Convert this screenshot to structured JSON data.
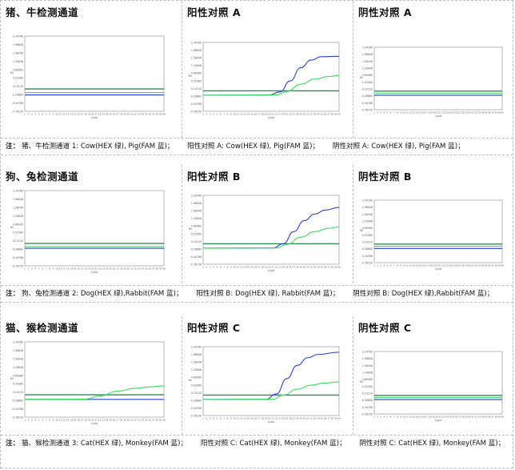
{
  "rows": [
    {
      "titles": [
        "猪、牛检测通道",
        "阳性对照 A",
        "阴性对照 A"
      ],
      "note": {
        "lead": "注：",
        "parts": [
          "猪、牛检测通道 1: Cow(HEX  绿), Pig(FAM  蓝)；",
          "阳性对照 A:   Cow(HEX  绿), Pig(FAM  蓝)；",
          "阴性对照 A:   Cow(HEX  绿), Pig(FAM  蓝)；"
        ]
      }
    },
    {
      "titles": [
        "狗、兔检测通道",
        "阳性对照 B",
        "阴性对照 B"
      ],
      "note": {
        "lead": "注：",
        "parts": [
          "狗、兔检测通道 2: Dog(HEX  绿),Rabbit(FAM  蓝)；",
          "阳性对照 B: Dog(HEX  绿), Rabbit(FAM  蓝)；",
          "阴性对照 B: Dog(HEX  绿),Rabbit(FAM  蓝)；"
        ]
      }
    },
    {
      "titles": [
        "猫、猴检测通道",
        "阳性对照 C",
        "阴性对照 C"
      ],
      "note": {
        "lead": "注：",
        "parts": [
          "猫、猴检测通道 3:   Cat(HEX  绿), Monkey(FAM  蓝)；",
          "阳性对照 C:   Cat(HEX  绿), Monkey(FAM  蓝)；",
          "阴性对照 C:   Cat(HEX  绿), Monkey(FAM  蓝)；"
        ]
      }
    }
  ],
  "colors": {
    "fam": "#2a3fd6",
    "hex": "#33e05a",
    "threshold": "#2f8a55",
    "axis": "#888888"
  },
  "chart_data": [
    {
      "type": "line",
      "title": "猪、牛检测通道",
      "ylim": [
        -0.78,
        2.35
      ],
      "x": [
        1,
        40
      ],
      "threshold": 0.15,
      "yticks": [
        "2.34780",
        "1.96848",
        "1.58046",
        "1.20848",
        "0.80960",
        "0.52080",
        "0.13120",
        "-0.26880",
        "-0.44768",
        "-0.78150"
      ],
      "series": [
        {
          "name": "Pig(FAM 蓝)",
          "values": [
            [
              1,
              -0.1
            ],
            [
              40,
              -0.1
            ]
          ]
        },
        {
          "name": "Cow(HEX 绿)",
          "values": [
            [
              1,
              0.0
            ],
            [
              40,
              0.0
            ]
          ]
        }
      ]
    },
    {
      "type": "line",
      "title": "阳性对照 A",
      "ylim": [
        -0.78,
        2.35
      ],
      "x": [
        1,
        40
      ],
      "threshold": 0.15,
      "yticks": [
        "2.34780",
        "1.96848",
        "1.58046",
        "1.20848",
        "0.80960",
        "0.52080",
        "0.13120",
        "-0.26880",
        "-0.44768",
        "-0.78150"
      ],
      "series": [
        {
          "name": "Pig(FAM 蓝)",
          "values": [
            [
              1,
              -0.05
            ],
            [
              20,
              -0.04
            ],
            [
              23,
              0.1
            ],
            [
              26,
              0.6
            ],
            [
              29,
              1.2
            ],
            [
              32,
              1.55
            ],
            [
              35,
              1.7
            ],
            [
              40,
              1.72
            ]
          ]
        },
        {
          "name": "Cow(HEX 绿)",
          "values": [
            [
              1,
              -0.05
            ],
            [
              22,
              -0.04
            ],
            [
              25,
              0.12
            ],
            [
              29,
              0.45
            ],
            [
              33,
              0.68
            ],
            [
              37,
              0.8
            ],
            [
              40,
              0.85
            ]
          ]
        }
      ]
    },
    {
      "type": "line",
      "title": "阴性对照 A",
      "ylim": [
        -0.78,
        2.35
      ],
      "x": [
        1,
        40
      ],
      "threshold": 0.15,
      "yticks": [
        "2.34780",
        "1.96848",
        "1.58046",
        "1.20848",
        "0.80960",
        "0.52080",
        "0.13120",
        "-0.26880",
        "-0.44768",
        "-0.78150"
      ],
      "series": [
        {
          "name": "Pig(FAM 蓝)",
          "values": [
            [
              1,
              -0.06
            ],
            [
              40,
              -0.06
            ]
          ]
        },
        {
          "name": "Cow(HEX 绿)",
          "values": [
            [
              1,
              0.03
            ],
            [
              40,
              0.03
            ]
          ]
        }
      ]
    },
    {
      "type": "line",
      "title": "狗、兔检测通道",
      "ylim": [
        -0.78,
        2.35
      ],
      "x": [
        1,
        40
      ],
      "threshold": 0.15,
      "yticks": [
        "2.34780",
        "1.96848",
        "1.58046",
        "1.20848",
        "0.80960",
        "0.52080",
        "0.13120",
        "-0.26880",
        "-0.44768",
        "-0.78150"
      ],
      "series": [
        {
          "name": "Rabbit(FAM 蓝)",
          "values": [
            [
              1,
              -0.05
            ],
            [
              40,
              -0.05
            ]
          ]
        },
        {
          "name": "Dog(HEX 绿)",
          "values": [
            [
              1,
              0.02
            ],
            [
              40,
              0.02
            ]
          ]
        }
      ]
    },
    {
      "type": "line",
      "title": "阳性对照 B",
      "ylim": [
        -0.78,
        2.35
      ],
      "x": [
        1,
        40
      ],
      "threshold": 0.15,
      "yticks": [
        "2.34780",
        "1.96848",
        "1.58046",
        "1.20848",
        "0.80960",
        "0.52080",
        "0.13120",
        "-0.26880",
        "-0.44768",
        "-0.78150"
      ],
      "series": [
        {
          "name": "Rabbit(FAM 蓝)",
          "values": [
            [
              1,
              -0.05
            ],
            [
              21,
              -0.04
            ],
            [
              24,
              0.15
            ],
            [
              27,
              0.7
            ],
            [
              30,
              1.2
            ],
            [
              33,
              1.5
            ],
            [
              36,
              1.68
            ],
            [
              40,
              1.8
            ]
          ]
        },
        {
          "name": "Dog(HEX 绿)",
          "values": [
            [
              1,
              -0.05
            ],
            [
              22,
              -0.04
            ],
            [
              25,
              0.12
            ],
            [
              29,
              0.45
            ],
            [
              33,
              0.7
            ],
            [
              37,
              0.85
            ],
            [
              40,
              0.92
            ]
          ]
        }
      ]
    },
    {
      "type": "line",
      "title": "阴性对照 B",
      "ylim": [
        -0.78,
        2.35
      ],
      "x": [
        1,
        40
      ],
      "threshold": 0.15,
      "yticks": [
        "2.34780",
        "1.96848",
        "1.58046",
        "1.20848",
        "0.80960",
        "0.52080",
        "0.13120",
        "-0.26880",
        "-0.44768",
        "-0.78150"
      ],
      "series": [
        {
          "name": "Rabbit(FAM 蓝)",
          "values": [
            [
              1,
              -0.07
            ],
            [
              40,
              -0.07
            ]
          ]
        },
        {
          "name": "Dog(HEX 绿)",
          "values": [
            [
              1,
              0.04
            ],
            [
              40,
              0.04
            ]
          ]
        }
      ]
    },
    {
      "type": "line",
      "title": "猫、猴检测通道",
      "ylim": [
        -0.78,
        2.35
      ],
      "x": [
        1,
        40
      ],
      "threshold": 0.15,
      "yticks": [
        "2.34780",
        "1.96848",
        "1.58046",
        "1.20848",
        "0.80960",
        "0.52080",
        "0.13120",
        "-0.26880",
        "-0.44768",
        "-0.78150"
      ],
      "series": [
        {
          "name": "Monkey(FAM 蓝)",
          "values": [
            [
              1,
              -0.04
            ],
            [
              40,
              -0.04
            ]
          ]
        },
        {
          "name": "Cat(HEX 绿)",
          "values": [
            [
              1,
              -0.04
            ],
            [
              18,
              -0.03
            ],
            [
              22,
              0.1
            ],
            [
              27,
              0.3
            ],
            [
              32,
              0.42
            ],
            [
              36,
              0.48
            ],
            [
              40,
              0.52
            ]
          ]
        }
      ]
    },
    {
      "type": "line",
      "title": "阳性对照 C",
      "ylim": [
        -0.78,
        2.35
      ],
      "x": [
        1,
        40
      ],
      "threshold": 0.15,
      "yticks": [
        "2.34780",
        "1.96848",
        "1.58046",
        "1.20848",
        "0.80960",
        "0.52080",
        "0.13120",
        "-0.26880",
        "-0.44768",
        "-0.78150"
      ],
      "series": [
        {
          "name": "Monkey(FAM 蓝)",
          "values": [
            [
              1,
              -0.05
            ],
            [
              19,
              -0.04
            ],
            [
              22,
              0.2
            ],
            [
              25,
              0.9
            ],
            [
              28,
              1.5
            ],
            [
              31,
              1.85
            ],
            [
              34,
              2.0
            ],
            [
              40,
              2.1
            ]
          ]
        },
        {
          "name": "Cat(HEX 绿)",
          "values": [
            [
              1,
              -0.05
            ],
            [
              21,
              -0.04
            ],
            [
              24,
              0.15
            ],
            [
              28,
              0.42
            ],
            [
              32,
              0.6
            ],
            [
              36,
              0.7
            ],
            [
              40,
              0.75
            ]
          ]
        }
      ]
    },
    {
      "type": "line",
      "title": "阴性对照 C",
      "ylim": [
        -0.78,
        2.35
      ],
      "x": [
        1,
        40
      ],
      "threshold": 0.15,
      "yticks": [
        "2.34780",
        "1.96848",
        "1.58046",
        "1.20848",
        "0.80960",
        "0.52080",
        "0.13120",
        "-0.26880",
        "-0.44768",
        "-0.78150"
      ],
      "series": [
        {
          "name": "Monkey(FAM 蓝)",
          "values": [
            [
              1,
              -0.06
            ],
            [
              40,
              -0.06
            ]
          ]
        },
        {
          "name": "Cat(HEX 绿)",
          "values": [
            [
              1,
              0.05
            ],
            [
              40,
              0.05
            ]
          ]
        }
      ]
    }
  ],
  "axis": {
    "ylabel": "Rn",
    "xlabel": "Cycle"
  }
}
